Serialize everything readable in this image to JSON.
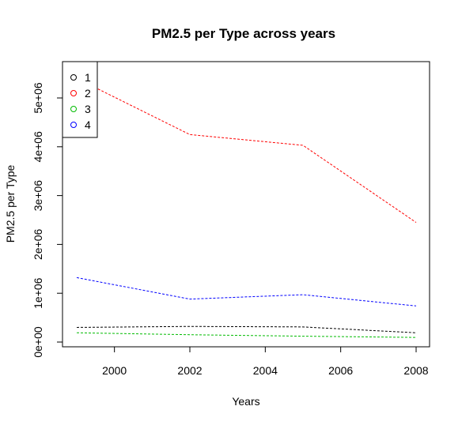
{
  "chart_data": {
    "type": "line",
    "title": "PM2.5 per Type across years",
    "xlabel": "Years",
    "ylabel": "PM2.5 per Type",
    "x": [
      1999,
      2002,
      2005,
      2008
    ],
    "xlim": [
      1999,
      2008
    ],
    "ylim": [
      0,
      5300000
    ],
    "x_ticks": [
      2000,
      2002,
      2004,
      2006,
      2008
    ],
    "x_tick_labels": [
      "2000",
      "2002",
      "2004",
      "2006",
      "2008"
    ],
    "y_ticks": [
      0,
      1000000,
      2000000,
      3000000,
      4000000,
      5000000
    ],
    "y_tick_labels": [
      "0e+00",
      "1e+06",
      "2e+06",
      "3e+06",
      "4e+06",
      "5e+06"
    ],
    "legend_position": "top-left",
    "grid": false,
    "series": [
      {
        "name": "1",
        "color": "#000000",
        "values": [
          300000,
          320000,
          310000,
          190000
        ]
      },
      {
        "name": "2",
        "color": "#ff0000",
        "values": [
          5400000,
          4250000,
          4030000,
          2450000
        ]
      },
      {
        "name": "3",
        "color": "#00bb00",
        "values": [
          190000,
          150000,
          120000,
          95000
        ]
      },
      {
        "name": "4",
        "color": "#0000ff",
        "values": [
          1320000,
          880000,
          970000,
          740000
        ]
      }
    ]
  }
}
